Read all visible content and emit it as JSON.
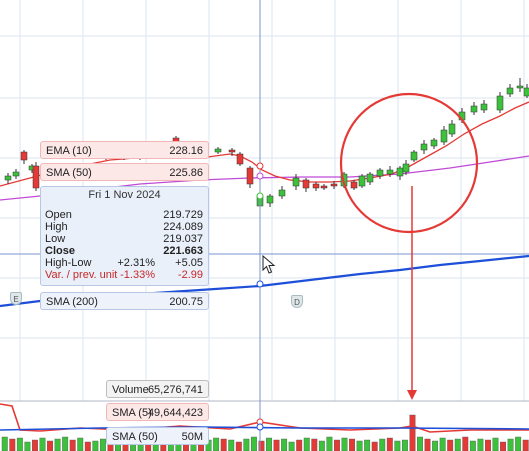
{
  "indicators": {
    "ema10": {
      "label": "EMA (10)",
      "value": "228.16",
      "color": "#e53935"
    },
    "sma50": {
      "label": "SMA (50)",
      "value": "225.86",
      "color": "#c04bd6"
    },
    "sma200": {
      "label": "SMA (200)",
      "value": "200.75",
      "color": "#1e4fd8"
    }
  },
  "info_box": {
    "date": "Fri 1 Nov 2024",
    "open_label": "Open",
    "open": "219.729",
    "high_label": "High",
    "high": "224.089",
    "low_label": "Low",
    "low": "219.037",
    "close_label": "Close",
    "close": "221.663",
    "hl_label": "High-Low",
    "hl_pct": "+2.31%",
    "hl_abs": "+5.05",
    "var_label": "Var. / prev. unit",
    "var_pct": "-1.33%",
    "var_abs": "-2.99"
  },
  "volume_panel": {
    "volume": {
      "label": "Volume",
      "value": "65,276,741"
    },
    "sma5": {
      "label": "SMA (5)",
      "value": "49,644,423"
    },
    "sma50": {
      "label": "SMA (50)",
      "value": "50M"
    }
  },
  "markers": {
    "earnings": "E",
    "dividend": "D"
  },
  "colors": {
    "up": "#3cc13b",
    "down": "#e53935",
    "annotation": "#e53935",
    "crosshair": "#7a95cf"
  },
  "icons": {
    "cursor": "mouse-pointer-icon"
  }
}
